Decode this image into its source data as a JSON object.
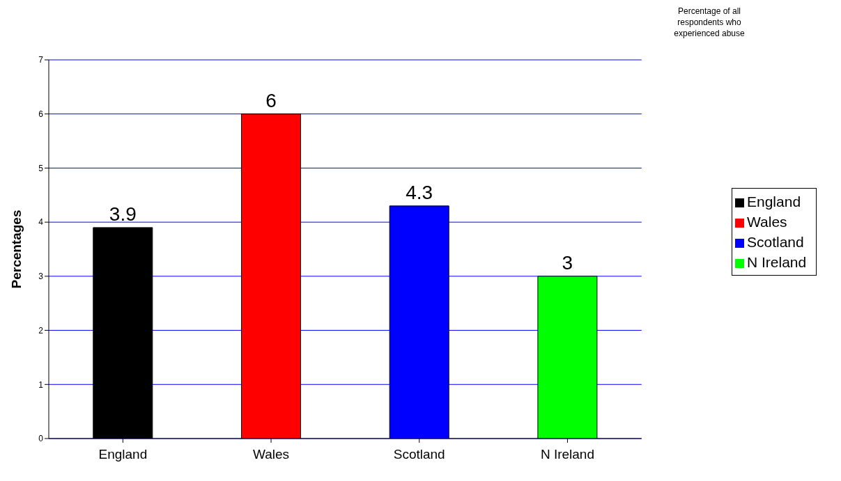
{
  "chart_data": {
    "type": "bar",
    "title": "Percentage of all respondents who experienced abuse",
    "ylabel": "Percentages",
    "categories": [
      "England",
      "Wales",
      "Scotland",
      "N Ireland"
    ],
    "series": [
      {
        "name": "England",
        "color": "#000000",
        "values": [
          3.9,
          null,
          null,
          null
        ]
      },
      {
        "name": "Wales",
        "color": "#ff0000",
        "values": [
          null,
          6,
          null,
          null
        ]
      },
      {
        "name": "Scotland",
        "color": "#0000ff",
        "values": [
          null,
          null,
          4.3,
          null
        ]
      },
      {
        "name": "N Ireland",
        "color": "#00ff00",
        "values": [
          null,
          null,
          null,
          3
        ]
      }
    ],
    "stacked": true,
    "ylim": [
      0,
      7
    ],
    "yticks": [
      0,
      1,
      2,
      3,
      4,
      5,
      6,
      7
    ],
    "grid": "y",
    "data_labels": true,
    "legend": "right"
  }
}
